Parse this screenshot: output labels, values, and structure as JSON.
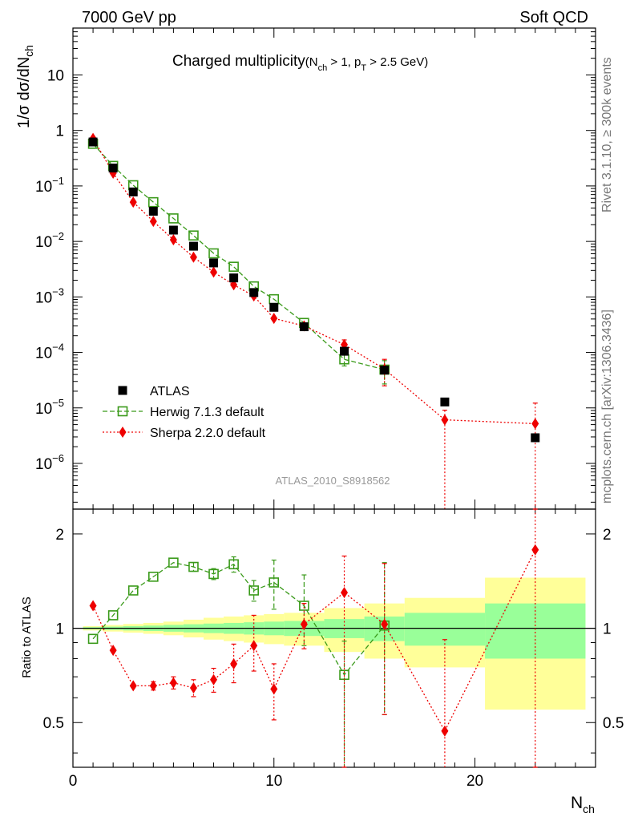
{
  "header": {
    "left": "7000 GeV pp",
    "right": "Soft QCD"
  },
  "side_labels": {
    "rivet": "Rivet 3.1.10, ≥ 300k events",
    "mcplots": "mcplots.cern.ch [arXiv:1306.3436]"
  },
  "analysis_id": "ATLAS_2010_S8918562",
  "colors": {
    "atlas": "#000000",
    "herwig": "#3a9a1a",
    "sherpa": "#ee0000",
    "band_inner": "#99ff99",
    "band_outer": "#ffff99"
  },
  "chart_data": [
    {
      "type": "scatter",
      "title": "Charged multiplicity",
      "title_note": {
        "pre": "(N",
        "sub1": "ch",
        "mid": " > 1, p",
        "sub2": "T",
        "post": " > 2.5 GeV)"
      },
      "ylabel": {
        "pre": "1/σ dσ/dN",
        "sub": "ch"
      },
      "xlim": [
        0,
        26
      ],
      "ylim": [
        1.5e-07,
        70
      ],
      "yscale": "log",
      "y_tick_labels": [
        {
          "value": 1e-06,
          "base": "10",
          "exp": "−6"
        },
        {
          "value": 1e-05,
          "base": "10",
          "exp": "−5"
        },
        {
          "value": 0.0001,
          "base": "10",
          "exp": "−4"
        },
        {
          "value": 0.001,
          "base": "10",
          "exp": "−3"
        },
        {
          "value": 0.01,
          "base": "10",
          "exp": "−2"
        },
        {
          "value": 0.1,
          "base": "10",
          "exp": "−1"
        },
        {
          "value": 1,
          "base": "1",
          "exp": ""
        },
        {
          "value": 10,
          "base": "10",
          "exp": ""
        }
      ],
      "legend_position": "bottom-left",
      "series": [
        {
          "name": "ATLAS",
          "style": "data",
          "x": [
            1,
            2,
            3,
            4,
            5,
            6,
            7,
            8,
            9,
            10,
            11.5,
            13.5,
            15.5,
            18.5,
            23
          ],
          "values": [
            0.62,
            0.21,
            0.078,
            0.035,
            0.016,
            0.0082,
            0.0041,
            0.0022,
            0.0012,
            0.00065,
            0.00029,
            0.000105,
            4.8e-05,
            1.28e-05,
            2.9e-06
          ]
        },
        {
          "name": "Herwig 7.1.3 default",
          "style": "herwig",
          "x": [
            1,
            2,
            3,
            4,
            5,
            6,
            7,
            8,
            9,
            10,
            11.5,
            13.5,
            15.5
          ],
          "values": [
            0.575,
            0.23,
            0.103,
            0.051,
            0.026,
            0.0128,
            0.0061,
            0.0035,
            0.00155,
            0.00091,
            0.00034,
            7.5e-05,
            4.9e-05
          ],
          "err_up": [
            0,
            0,
            0,
            0,
            0,
            0,
            0,
            0,
            0,
            0,
            0,
            1.8e-05,
            2.2e-05
          ],
          "err_down": [
            0,
            0,
            0,
            0,
            0,
            0,
            0,
            0,
            0,
            0,
            0,
            1.8e-05,
            2.2e-05
          ]
        },
        {
          "name": "Sherpa 2.2.0 default",
          "style": "sherpa",
          "x": [
            1,
            2,
            3,
            4,
            5,
            6,
            7,
            8,
            9,
            10,
            11.5,
            13.5,
            15.5,
            18.5,
            23
          ],
          "values": [
            0.72,
            0.17,
            0.051,
            0.023,
            0.0107,
            0.0052,
            0.0028,
            0.00165,
            0.00104,
            0.00041,
            0.0003,
            0.000138,
            5e-05,
            6.1e-06,
            5.2e-06
          ],
          "err_up": [
            0,
            0,
            0,
            0,
            0,
            0,
            0,
            0,
            0,
            0,
            0,
            3e-05,
            2.5e-05,
            3e-06,
            7e-06
          ],
          "err_down": [
            0,
            0,
            0,
            0,
            0,
            0,
            0,
            0,
            0,
            0,
            0,
            3e-05,
            2.5e-05,
            6.1e-06,
            5.2e-06
          ]
        }
      ]
    },
    {
      "type": "scatter",
      "title": "",
      "xlabel": {
        "pre": "N",
        "sub": "ch"
      },
      "ylabel": "Ratio to ATLAS",
      "xlim": [
        0,
        26
      ],
      "ylim": [
        0.36,
        2.4
      ],
      "yscale": "log",
      "x_ticks": [
        0,
        10,
        20
      ],
      "y_ticks": [
        0.5,
        1,
        2
      ],
      "reference_line": 1,
      "bands": {
        "edges": [
          0.5,
          1.5,
          2.5,
          3.5,
          4.5,
          5.5,
          6.5,
          7.5,
          8.5,
          9.5,
          10.5,
          12.5,
          14.5,
          16.5,
          20.5,
          25.5
        ],
        "inner": [
          0.008,
          0.012,
          0.016,
          0.02,
          0.025,
          0.03,
          0.035,
          0.04,
          0.045,
          0.05,
          0.055,
          0.07,
          0.09,
          0.12,
          0.2
        ],
        "outer": [
          0.016,
          0.024,
          0.032,
          0.04,
          0.05,
          0.065,
          0.08,
          0.09,
          0.1,
          0.11,
          0.12,
          0.16,
          0.2,
          0.25,
          0.45
        ]
      },
      "series": [
        {
          "name": "Herwig 7.1.3 default",
          "style": "herwig",
          "x": [
            1,
            2,
            3,
            4,
            5,
            6,
            7,
            8,
            9,
            10,
            11.5,
            13.5,
            15.5
          ],
          "values": [
            0.925,
            1.1,
            1.32,
            1.46,
            1.62,
            1.57,
            1.49,
            1.6,
            1.32,
            1.4,
            1.18,
            0.71,
            1.02
          ],
          "err_up": [
            0,
            0,
            0,
            0,
            0,
            0.05,
            0.06,
            0.09,
            0.1,
            0.25,
            0.3,
            0.2,
            0.6
          ],
          "err_down": [
            0,
            0,
            0,
            0,
            0,
            0.05,
            0.06,
            0.09,
            0.1,
            0.25,
            0.3,
            0.37,
            0.49
          ]
        },
        {
          "name": "Sherpa 2.2.0 default",
          "style": "sherpa",
          "x": [
            1,
            2,
            3,
            4,
            5,
            6,
            7,
            8,
            9,
            10,
            11.5,
            13.5,
            15.5,
            18.5,
            23
          ],
          "values": [
            1.18,
            0.85,
            0.655,
            0.655,
            0.67,
            0.645,
            0.685,
            0.77,
            0.88,
            0.64,
            1.03,
            1.3,
            1.03,
            0.47,
            1.78
          ],
          "err_up": [
            0,
            0,
            0,
            0.02,
            0.03,
            0.04,
            0.06,
            0.12,
            0.22,
            0.13,
            0.17,
            0.4,
            0.58,
            0.45,
            1.5
          ],
          "err_down": [
            0,
            0,
            0,
            0.02,
            0.03,
            0.04,
            0.06,
            0.1,
            0.15,
            0.13,
            0.17,
            0.94,
            0.5,
            0.11,
            1.42
          ]
        }
      ]
    }
  ]
}
